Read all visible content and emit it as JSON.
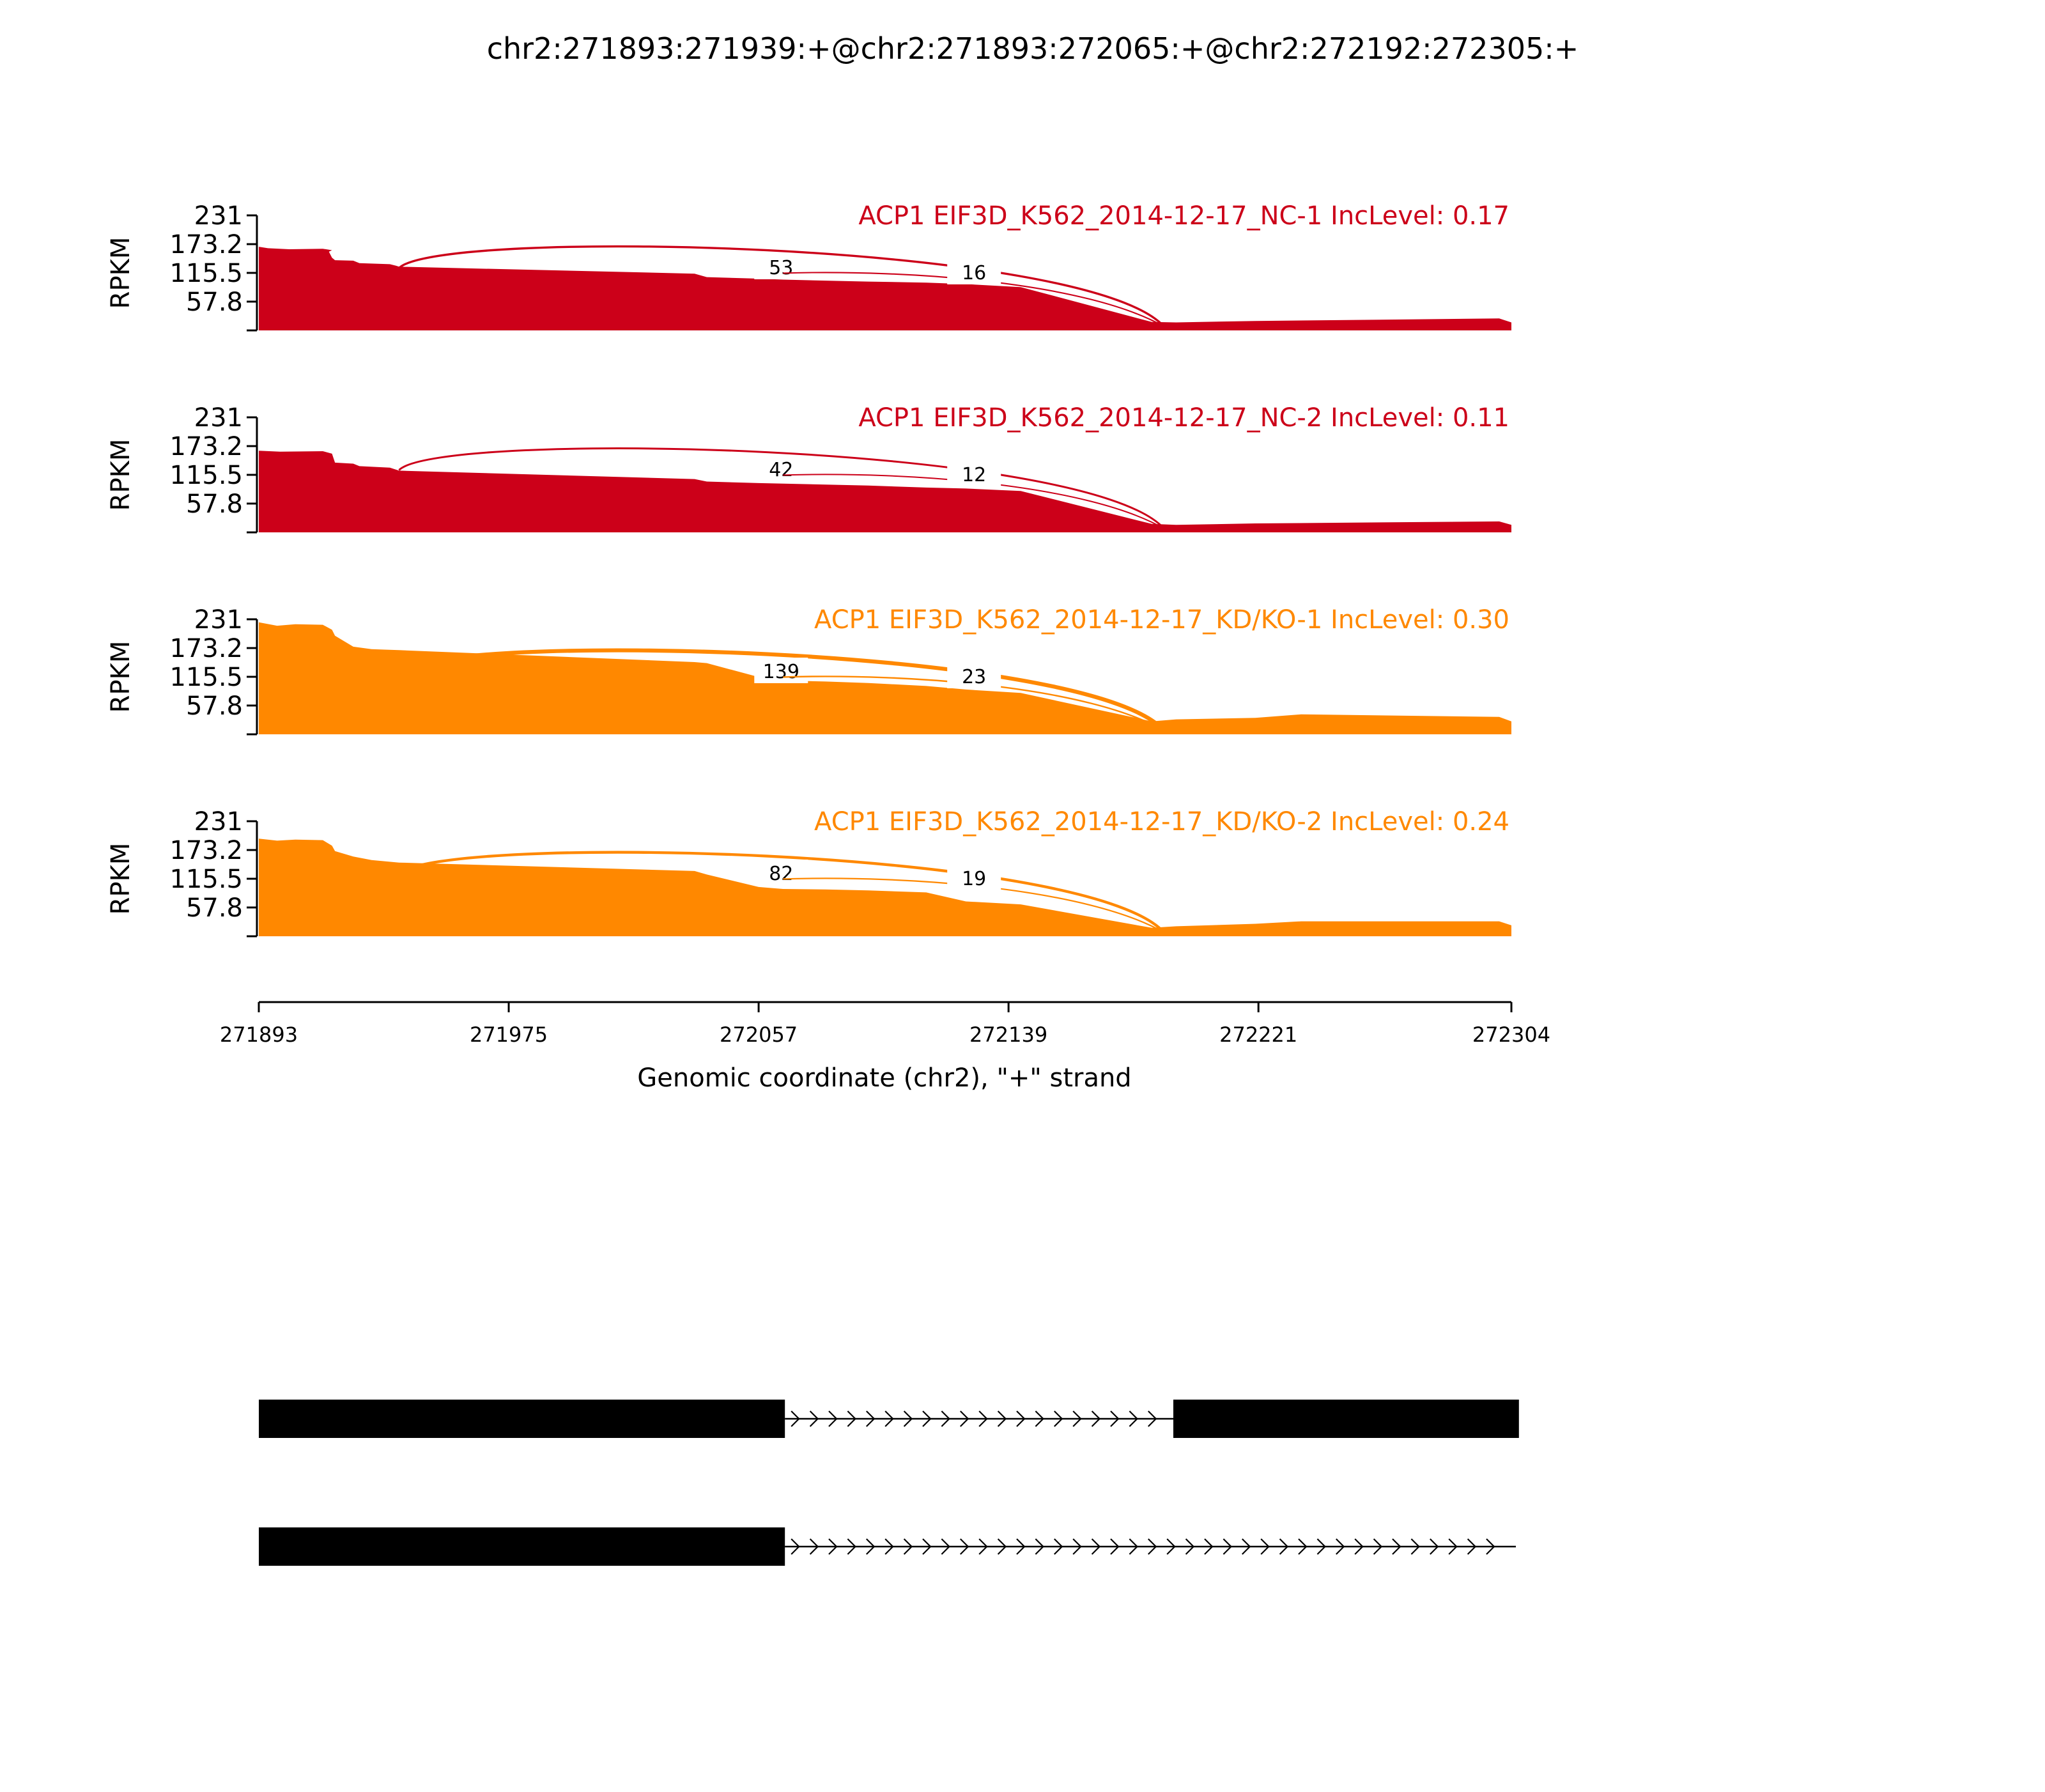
{
  "title": "chr2:271893:271939:+@chr2:271893:272065:+@chr2:272192:272305:+",
  "colors": {
    "nc": "#cc0019",
    "kd": "#ff8800",
    "axis": "#000000",
    "gene": "#000000"
  },
  "chart_data": {
    "type": "area",
    "ylabel": "RPKM",
    "xlabel": "Genomic coordinate (chr2), \"+\" strand",
    "xlim": [
      271893,
      272304
    ],
    "xticks": [
      "271893",
      "271975",
      "272057",
      "272139",
      "272221",
      "272304"
    ],
    "ylim": [
      0,
      231
    ],
    "yticks": [
      "231",
      "173.2",
      "115.5",
      "57.8"
    ],
    "panels": [
      {
        "label": "ACP1 EIF3D_K562_2014-12-17_NC-1 IncLevel: 0.17",
        "group": "nc",
        "coverage": [
          [
            271893,
            168
          ],
          [
            271896,
            165
          ],
          [
            271903,
            163
          ],
          [
            271914,
            164
          ],
          [
            271917,
            161
          ],
          [
            271916,
            158
          ],
          [
            271917,
            146
          ],
          [
            271918,
            141
          ],
          [
            271924,
            140
          ],
          [
            271926,
            135
          ],
          [
            271936,
            133
          ],
          [
            271938,
            130
          ],
          [
            271939,
            128
          ],
          [
            272036,
            114
          ],
          [
            272040,
            107
          ],
          [
            272057,
            104
          ],
          [
            272065,
            102
          ],
          [
            272079,
            100
          ],
          [
            272093,
            98
          ],
          [
            272112,
            96
          ],
          [
            272125,
            93
          ],
          [
            272143,
            87
          ],
          [
            272186,
            17
          ],
          [
            272194,
            16
          ],
          [
            272220,
            19
          ],
          [
            272300,
            24
          ],
          [
            272304,
            16
          ]
        ],
        "junctions": [
          {
            "label": "53",
            "weight": 53,
            "from": 271939,
            "to": 272190,
            "via": "inclusion-skip"
          },
          {
            "label": "16",
            "weight": 16,
            "from": 272065,
            "to": 272190,
            "via": "inclusion"
          }
        ]
      },
      {
        "label": "ACP1 EIF3D_K562_2014-12-17_NC-2 IncLevel: 0.11",
        "group": "nc",
        "coverage": [
          [
            271893,
            164
          ],
          [
            271900,
            162
          ],
          [
            271914,
            163
          ],
          [
            271917,
            158
          ],
          [
            271918,
            140
          ],
          [
            271924,
            138
          ],
          [
            271926,
            133
          ],
          [
            271936,
            130
          ],
          [
            271939,
            124
          ],
          [
            272036,
            107
          ],
          [
            272040,
            102
          ],
          [
            272057,
            99
          ],
          [
            272079,
            96
          ],
          [
            272093,
            94
          ],
          [
            272112,
            90
          ],
          [
            272125,
            88
          ],
          [
            272143,
            83
          ],
          [
            272186,
            17
          ],
          [
            272194,
            15
          ],
          [
            272220,
            18
          ],
          [
            272300,
            22
          ],
          [
            272304,
            15
          ]
        ],
        "junctions": [
          {
            "label": "42",
            "weight": 42,
            "from": 271939,
            "to": 272190,
            "via": "inclusion-skip"
          },
          {
            "label": "12",
            "weight": 12,
            "from": 272065,
            "to": 272190,
            "via": "inclusion"
          }
        ]
      },
      {
        "label": "ACP1 EIF3D_K562_2014-12-17_KD/KO-1 IncLevel: 0.30",
        "group": "kd",
        "coverage": [
          [
            271893,
            225
          ],
          [
            271899,
            218
          ],
          [
            271905,
            221
          ],
          [
            271914,
            220
          ],
          [
            271917,
            210
          ],
          [
            271918,
            198
          ],
          [
            271924,
            176
          ],
          [
            271930,
            171
          ],
          [
            271939,
            169
          ],
          [
            272036,
            145
          ],
          [
            272040,
            143
          ],
          [
            272057,
            115
          ],
          [
            272065,
            108
          ],
          [
            272079,
            106
          ],
          [
            272093,
            103
          ],
          [
            272112,
            97
          ],
          [
            272125,
            90
          ],
          [
            272143,
            83
          ],
          [
            272186,
            26
          ],
          [
            272194,
            30
          ],
          [
            272220,
            33
          ],
          [
            272235,
            40
          ],
          [
            272300,
            35
          ],
          [
            272304,
            26
          ]
        ],
        "junctions": [
          {
            "label": "139",
            "weight": 139,
            "from": 271939,
            "to": 272190,
            "via": "inclusion-skip"
          },
          {
            "label": "23",
            "weight": 23,
            "from": 272065,
            "to": 272190,
            "via": "inclusion"
          }
        ]
      },
      {
        "label": "ACP1 EIF3D_K562_2014-12-17_KD/KO-2 IncLevel: 0.24",
        "group": "kd",
        "coverage": [
          [
            271893,
            196
          ],
          [
            271899,
            192
          ],
          [
            271905,
            194
          ],
          [
            271914,
            193
          ],
          [
            271917,
            182
          ],
          [
            271918,
            171
          ],
          [
            271924,
            160
          ],
          [
            271930,
            153
          ],
          [
            271939,
            148
          ],
          [
            272036,
            131
          ],
          [
            272040,
            124
          ],
          [
            272057,
            99
          ],
          [
            272065,
            95
          ],
          [
            272079,
            94
          ],
          [
            272093,
            92
          ],
          [
            272112,
            88
          ],
          [
            272125,
            70
          ],
          [
            272143,
            64
          ],
          [
            272186,
            17
          ],
          [
            272194,
            20
          ],
          [
            272220,
            25
          ],
          [
            272235,
            30
          ],
          [
            272300,
            30
          ],
          [
            272304,
            22
          ]
        ],
        "junctions": [
          {
            "label": "82",
            "weight": 82,
            "from": 271939,
            "to": 272190,
            "via": "inclusion-skip"
          },
          {
            "label": "19",
            "weight": 19,
            "from": 272065,
            "to": 272190,
            "via": "inclusion"
          }
        ]
      }
    ],
    "gene_models": [
      {
        "exons": [
          [
            271893,
            272065
          ],
          [
            272192,
            272305
          ]
        ],
        "intron": [
          272065,
          272192
        ]
      },
      {
        "exons": [
          [
            271893,
            272065
          ]
        ],
        "intron": [
          272065,
          272304
        ]
      }
    ]
  }
}
